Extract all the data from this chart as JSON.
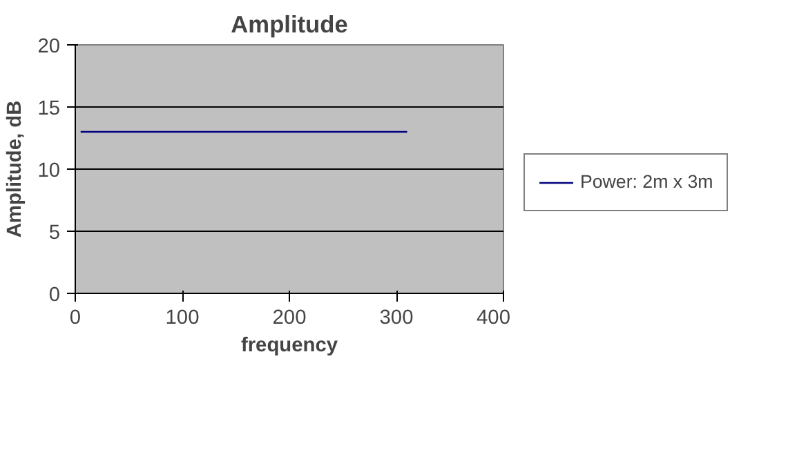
{
  "chart_data": {
    "type": "line",
    "title": "Amplitude",
    "xlabel": "frequency",
    "ylabel": "Amplitude, dB",
    "series": [
      {
        "name": "Power: 2m x 3m",
        "color": "#000080",
        "x": [
          5,
          310
        ],
        "values": [
          13,
          13
        ]
      }
    ],
    "xlim": [
      0,
      400
    ],
    "xticks": [
      0,
      100,
      200,
      300,
      400
    ],
    "ylim": [
      0,
      20
    ],
    "yticks": [
      0,
      5,
      10,
      15,
      20
    ],
    "grid": "y",
    "legend": "right",
    "marker": "none",
    "line_style": "solid"
  }
}
